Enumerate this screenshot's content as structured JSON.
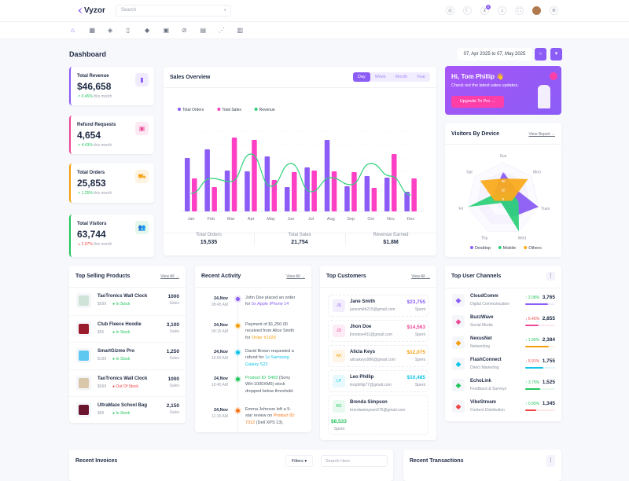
{
  "brand": {
    "name": "Vyzor"
  },
  "search": {
    "placeholder": "Search"
  },
  "topbar": {
    "icons": [
      "language-icon",
      "moon-icon",
      "cart-icon",
      "bell-icon",
      "fullscreen-icon",
      "avatar",
      "gear-icon"
    ],
    "cart_badge": "0"
  },
  "subnav": {
    "icons": [
      "home-icon",
      "apps-icon",
      "layers-icon",
      "file-icon",
      "diamond-icon",
      "gift-icon",
      "compass-icon",
      "store-icon",
      "chart-icon",
      "table-icon"
    ]
  },
  "page": {
    "title": "Dashboard",
    "date_range": "07, Apr 2025 to 07, May 2025"
  },
  "stats": [
    {
      "label": "Total Revenue",
      "value": "$46,658",
      "change": "0.45%",
      "trend": "up",
      "suffix": "this month",
      "color": "#8b5cf6",
      "icon": "bag-icon"
    },
    {
      "label": "Refund Requests",
      "value": "4,654",
      "change": "4.43%",
      "trend": "up",
      "suffix": "this month",
      "color": "#ec4899",
      "icon": "refund-icon"
    },
    {
      "label": "Total Orders",
      "value": "25,853",
      "change": "1.25%",
      "trend": "up",
      "suffix": "this month",
      "color": "#f59e0b",
      "icon": "cart-icon"
    },
    {
      "label": "Total Visitors",
      "value": "63,744",
      "change": "2.97%",
      "trend": "down",
      "suffix": "this month",
      "color": "#22c55e",
      "icon": "users-icon"
    }
  ],
  "sales": {
    "title": "Sales Overview",
    "tabs": [
      "Day",
      "Week",
      "Month",
      "Year"
    ],
    "active_tab": "Day",
    "summary": [
      {
        "label": "Total Orders",
        "value": "15,535"
      },
      {
        "label": "Total Sales",
        "value": "21,754"
      },
      {
        "label": "Revenue Earned",
        "value": "$1.8M"
      }
    ]
  },
  "chart_data": [
    {
      "type": "bar",
      "categories": [
        "Jan",
        "Feb",
        "Mar",
        "Apr",
        "May",
        "Jun",
        "Jul",
        "Aug",
        "Sep",
        "Oct",
        "Nov",
        "Dec"
      ],
      "ylim": [
        0,
        100
      ],
      "grid": true,
      "legend": "top-left",
      "series": [
        {
          "name": "Total Orders",
          "type": "bar",
          "color": "#8b5cf6",
          "values": [
            68,
            79,
            52,
            51,
            70,
            31,
            56,
            91,
            32,
            45,
            43,
            25
          ]
        },
        {
          "name": "Total Sales",
          "type": "bar",
          "color": "#ff3fc4",
          "values": [
            42,
            31,
            94,
            91,
            40,
            50,
            52,
            51,
            50,
            30,
            73,
            42
          ]
        },
        {
          "name": "Revenue",
          "type": "line",
          "color": "#2fd07a",
          "values": [
            23,
            42,
            38,
            73,
            32,
            61,
            25,
            43,
            34,
            61,
            45,
            21
          ]
        }
      ]
    },
    {
      "type": "radar",
      "categories": [
        "Sun",
        "Mon",
        "Tues",
        "Wed",
        "Thu",
        "Fri",
        "Sat"
      ],
      "ticks": [
        "0",
        "20",
        "40",
        "60"
      ],
      "rlim": [
        0,
        80
      ],
      "legend": "bottom",
      "series": [
        {
          "name": "Desktop",
          "color": "#8b5cf6",
          "values": [
            60,
            35,
            80,
            45,
            10,
            10,
            25
          ]
        },
        {
          "name": "Mobile",
          "color": "#2ed17b",
          "values": [
            10,
            25,
            35,
            80,
            10,
            80,
            20
          ]
        },
        {
          "name": "Others",
          "color": "#f9ab1d",
          "values": [
            45,
            70,
            20,
            5,
            5,
            20,
            65
          ]
        }
      ]
    }
  ],
  "banner": {
    "greeting": "Hi, Tom Phillip 👋",
    "text": "Check out the latest sales updates.",
    "button": "Upgrade To Pro →"
  },
  "visitors": {
    "title": "Visitors By Device",
    "link": "View Report →"
  },
  "products": {
    "title": "Top Selling Products",
    "link": "View All →",
    "items": [
      {
        "name": "TaoTronics Wall Clock",
        "price": "$699",
        "status": "In Stock",
        "sales": "1000",
        "unit": "Sales",
        "thumb": "#cfe3d8"
      },
      {
        "name": "Club Fleece Hoodie",
        "price": "$55",
        "status": "In Stock",
        "sales": "3,100",
        "unit": "Sales",
        "thumb": "#9b1c2c"
      },
      {
        "name": "SmartGizmo Pro",
        "price": "$199",
        "status": "In Stock",
        "sales": "1,250",
        "unit": "Sales",
        "thumb": "#5ec8f0"
      },
      {
        "name": "TaoTronics Wall Clock",
        "price": "$699",
        "status": "Out Of Stock",
        "sales": "1000",
        "unit": "Sales",
        "thumb": "#d8c7a8"
      },
      {
        "name": "UltraMaze School Bag",
        "price": "$89",
        "status": "In Stock",
        "sales": "2,150",
        "unit": "Sales",
        "thumb": "#6b1430"
      }
    ]
  },
  "activity": {
    "title": "Recent Activity",
    "link": "View All →",
    "items": [
      {
        "date": "24,Nov",
        "time": "08:45 AM",
        "color": "#8b5cf6",
        "parts": [
          "John Doe placed an order for ",
          "5x Apple iPhone 14",
          ""
        ]
      },
      {
        "date": "24,Nov",
        "time": "09:15 AM",
        "color": "#f59e0b",
        "parts": [
          "Payment of $1,250.00 received from Alice Smith for ",
          "Order #1020",
          ""
        ]
      },
      {
        "date": "24,Nov",
        "time": "10:00 AM",
        "color": "#0ec5e8",
        "parts": [
          "David Brown requested a refund for ",
          "1x Samsung Galaxy S22",
          ""
        ]
      },
      {
        "date": "24,Nov",
        "time": "10:45 AM",
        "color": "#22c55e",
        "parts": [
          "",
          "Product ID: 5409",
          " (Sony WH-1000XM5) stock dropped below threshold."
        ]
      },
      {
        "date": "24,Nov",
        "time": "11:30 AM",
        "color": "#f97316",
        "parts": [
          "Emma Johnson left a 5-star review on ",
          "Product ID: 7312",
          " (Dell XPS 13)."
        ]
      }
    ]
  },
  "customers": {
    "title": "Top Customers",
    "link": "View All →",
    "items": [
      {
        "initials": "JS",
        "name": "Jane Smith",
        "email": "janesmith215@gmail.com",
        "amount": "$23,755",
        "unit": "Spent",
        "color": "#8b5cf6"
      },
      {
        "initials": "JD",
        "name": "Jhon Doe",
        "email": "jhondoe431@gmail.com",
        "amount": "$14,563",
        "unit": "Spent",
        "color": "#ec4899"
      },
      {
        "initials": "AK",
        "name": "Alicia Keys",
        "email": "aliciakeys986@gmail.com",
        "amount": "$12,075",
        "unit": "Spent",
        "color": "#f59e0b"
      },
      {
        "initials": "LP",
        "name": "Leo Phillip",
        "email": "leophillip77@gmail.com",
        "amount": "$10,485",
        "unit": "Spent",
        "color": "#0ec5e8"
      },
      {
        "initials": "BS",
        "name": "Brenda Simpson",
        "email": "brendasimpson075@gmail.com",
        "amount": "$8,533",
        "unit": "Spent",
        "color": "#22c55e"
      }
    ]
  },
  "channels": {
    "title": "Top User Channels",
    "items": [
      {
        "name": "CloudComm",
        "sub": "Digital Communication",
        "change": "2.08%",
        "trend": "up",
        "value": "3,765",
        "progress": 75,
        "color": "#8b5cf6"
      },
      {
        "name": "BuzzWave",
        "sub": "Social Media",
        "change": "6.45%",
        "trend": "down",
        "value": "2,855",
        "progress": 45,
        "color": "#ec4899"
      },
      {
        "name": "NexusNet",
        "sub": "Networking",
        "change": "1.95%",
        "trend": "up",
        "value": "2,384",
        "progress": 80,
        "color": "#f59e0b"
      },
      {
        "name": "FlashConnect",
        "sub": "Direct Marketing",
        "change": "5.91%",
        "trend": "down",
        "value": "1,755",
        "progress": 60,
        "color": "#0ec5e8"
      },
      {
        "name": "EchoLink",
        "sub": "Feedback & Surveys",
        "change": "3.75%",
        "trend": "up",
        "value": "1,525",
        "progress": 50,
        "color": "#22c55e"
      },
      {
        "name": "VibeStream",
        "sub": "Content Distribution",
        "change": "0.95%",
        "trend": "up",
        "value": "1,345",
        "progress": 38,
        "color": "#ef4444"
      }
    ]
  },
  "invoices": {
    "title": "Recent Invoices",
    "filter": "Filters ▾",
    "search_placeholder": "Search Here"
  },
  "transactions": {
    "title": "Recent Transactions"
  }
}
